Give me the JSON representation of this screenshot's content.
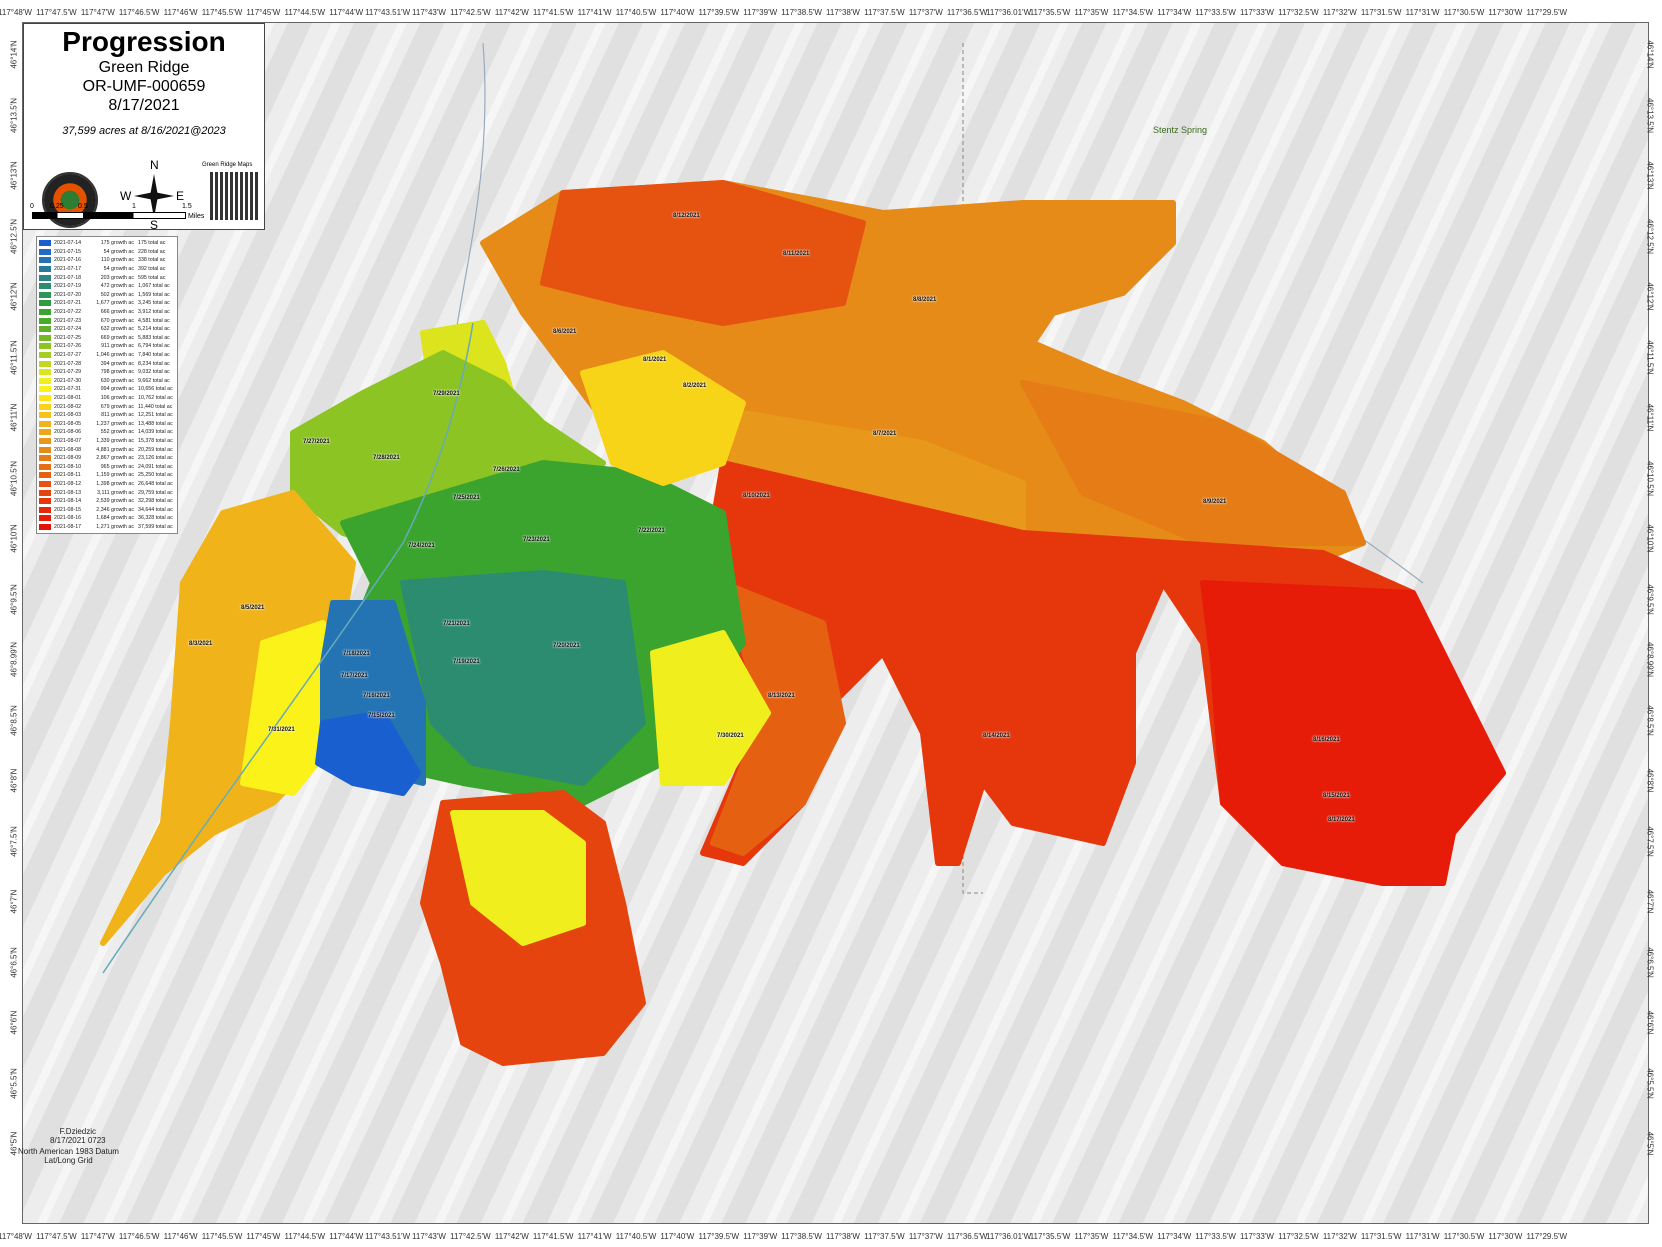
{
  "title": "Progression",
  "fire_name": "Green Ridge",
  "incident_id": "OR-UMF-000659",
  "map_date": "8/17/2021",
  "acres_summary": "37,599 acres at 8/16/2021@2023",
  "compass": {
    "n": "N",
    "s": "S",
    "e": "E",
    "w": "W"
  },
  "qr_label": "Green Ridge Maps",
  "scale_bar": {
    "ticks": [
      "0",
      "0.25",
      "0.5",
      "1",
      "1.5"
    ],
    "unit": "Miles"
  },
  "longitude_labels": [
    "117°48'W",
    "117°47.5'W",
    "117°47'W",
    "117°46.5'W",
    "117°46'W",
    "117°45.5'W",
    "117°45'W",
    "117°44.5'W",
    "117°44'W",
    "117°43.51'W",
    "117°43'W",
    "117°42.5'W",
    "117°42'W",
    "117°41.5'W",
    "117°41'W",
    "117°40.5'W",
    "117°40'W",
    "117°39.5'W",
    "117°39'W",
    "117°38.5'W",
    "117°38'W",
    "117°37.5'W",
    "117°37'W",
    "117°36.5'W",
    "117°36.01'W",
    "117°35.5'W",
    "117°35'W",
    "117°34.5'W",
    "117°34'W",
    "117°33.5'W",
    "117°33'W",
    "117°32.5'W",
    "117°32'W",
    "117°31.5'W",
    "117°31'W",
    "117°30.5'W",
    "117°30'W",
    "117°29.5'W"
  ],
  "latitude_labels": [
    "46°14'N",
    "46°13.5'N",
    "46°13'N",
    "46°12.5'N",
    "46°12'N",
    "46°11.5'N",
    "46°11'N",
    "46°10.5'N",
    "46°10'N",
    "46°9.5'N",
    "46°8.99'N",
    "46°8.5'N",
    "46°8'N",
    "46°7.5'N",
    "46°7'N",
    "46°6.5'N",
    "46°6'N",
    "46°5.5'N",
    "46°5'N"
  ],
  "legend": [
    {
      "date": "2021-07-14",
      "growth": "175 growth ac",
      "total": "175 total ac",
      "color": "#1a5fd0"
    },
    {
      "date": "2021-07-15",
      "growth": "54 growth ac",
      "total": "228 total ac",
      "color": "#1e6cc4"
    },
    {
      "date": "2021-07-16",
      "growth": "110 growth ac",
      "total": "338 total ac",
      "color": "#2474b4"
    },
    {
      "date": "2021-07-17",
      "growth": "54 growth ac",
      "total": "392 total ac",
      "color": "#287a9c"
    },
    {
      "date": "2021-07-18",
      "growth": "203 growth ac",
      "total": "595 total ac",
      "color": "#2a8488"
    },
    {
      "date": "2021-07-19",
      "growth": "472 growth ac",
      "total": "1,067 total ac",
      "color": "#2c8c70"
    },
    {
      "date": "2021-07-20",
      "growth": "502 growth ac",
      "total": "1,569 total ac",
      "color": "#2e955a"
    },
    {
      "date": "2021-07-21",
      "growth": "1,677 growth ac",
      "total": "3,245 total ac",
      "color": "#319c3e"
    },
    {
      "date": "2021-07-22",
      "growth": "666 growth ac",
      "total": "3,912 total ac",
      "color": "#3aa42e"
    },
    {
      "date": "2021-07-23",
      "growth": "670 growth ac",
      "total": "4,581 total ac",
      "color": "#4aaa2a"
    },
    {
      "date": "2021-07-24",
      "growth": "632 growth ac",
      "total": "5,214 total ac",
      "color": "#5db228"
    },
    {
      "date": "2021-07-25",
      "growth": "669 growth ac",
      "total": "5,883 total ac",
      "color": "#74ba26"
    },
    {
      "date": "2021-07-26",
      "growth": "911 growth ac",
      "total": "6,794 total ac",
      "color": "#8cc424"
    },
    {
      "date": "2021-07-27",
      "growth": "1,046 growth ac",
      "total": "7,840 total ac",
      "color": "#a6ce22"
    },
    {
      "date": "2021-07-28",
      "growth": "394 growth ac",
      "total": "8,234 total ac",
      "color": "#c2d820"
    },
    {
      "date": "2021-07-29",
      "growth": "798 growth ac",
      "total": "9,032 total ac",
      "color": "#dce41e"
    },
    {
      "date": "2021-07-30",
      "growth": "630 growth ac",
      "total": "9,662 total ac",
      "color": "#f0ee1c"
    },
    {
      "date": "2021-07-31",
      "growth": "994 growth ac",
      "total": "10,656 total ac",
      "color": "#fbf21a"
    },
    {
      "date": "2021-08-01",
      "growth": "106 growth ac",
      "total": "10,762 total ac",
      "color": "#fce418"
    },
    {
      "date": "2021-08-02",
      "growth": "679 growth ac",
      "total": "11,440 total ac",
      "color": "#f8d418"
    },
    {
      "date": "2021-08-03",
      "growth": "811 growth ac",
      "total": "12,251 total ac",
      "color": "#f4c41a"
    },
    {
      "date": "2021-08-05",
      "growth": "1,237 growth ac",
      "total": "13,488 total ac",
      "color": "#f0b41a"
    },
    {
      "date": "2021-08-06",
      "growth": "552 growth ac",
      "total": "14,039 total ac",
      "color": "#eca61a"
    },
    {
      "date": "2021-08-07",
      "growth": "1,339 growth ac",
      "total": "15,378 total ac",
      "color": "#e8981a"
    },
    {
      "date": "2021-08-08",
      "growth": "4,881 growth ac",
      "total": "20,259 total ac",
      "color": "#e68a18"
    },
    {
      "date": "2021-08-09",
      "growth": "2,867 growth ac",
      "total": "23,126 total ac",
      "color": "#e67c16"
    },
    {
      "date": "2021-08-10",
      "growth": "965 growth ac",
      "total": "24,091 total ac",
      "color": "#e66e14"
    },
    {
      "date": "2021-08-11",
      "growth": "1,159 growth ac",
      "total": "25,250 total ac",
      "color": "#e66012"
    },
    {
      "date": "2021-08-12",
      "growth": "1,398 growth ac",
      "total": "26,648 total ac",
      "color": "#e65210"
    },
    {
      "date": "2021-08-13",
      "growth": "3,111 growth ac",
      "total": "29,759 total ac",
      "color": "#e6440e"
    },
    {
      "date": "2021-08-14",
      "growth": "2,539 growth ac",
      "total": "32,298 total ac",
      "color": "#e6360c"
    },
    {
      "date": "2021-08-15",
      "growth": "2,346 growth ac",
      "total": "34,644 total ac",
      "color": "#e6280a"
    },
    {
      "date": "2021-08-16",
      "growth": "1,684 growth ac",
      "total": "36,328 total ac",
      "color": "#e61c08"
    },
    {
      "date": "2021-08-17",
      "growth": "1,271 growth ac",
      "total": "37,599 total ac",
      "color": "#e61006"
    }
  ],
  "perimeter_labels": [
    "8/12/2021",
    "8/11/2021",
    "8/8/2021",
    "8/6/2021",
    "8/1/2021",
    "8/2/2021",
    "7/29/2021",
    "7/27/2021",
    "7/28/2021",
    "7/26/2021",
    "7/25/2021",
    "7/24/2021",
    "7/23/2021",
    "7/22/2021",
    "8/7/2021",
    "8/10/2021",
    "8/9/2021",
    "8/5/2021",
    "8/3/2021",
    "7/31/2021",
    "7/30/2021",
    "7/21/2021",
    "7/20/2021",
    "7/19/2021",
    "7/18/2021",
    "7/17/2021",
    "7/16/2021",
    "7/15/2021",
    "8/13/2021",
    "8/14/2021",
    "8/16/2021",
    "8/15/2021",
    "8/17/2021"
  ],
  "place_name": "Stentz Spring",
  "credit": {
    "author": "F.Dziedzic",
    "timestamp": "8/17/2021 0723"
  },
  "datum": {
    "line1": "North American 1983 Datum",
    "line2": "Lat/Long Grid"
  }
}
